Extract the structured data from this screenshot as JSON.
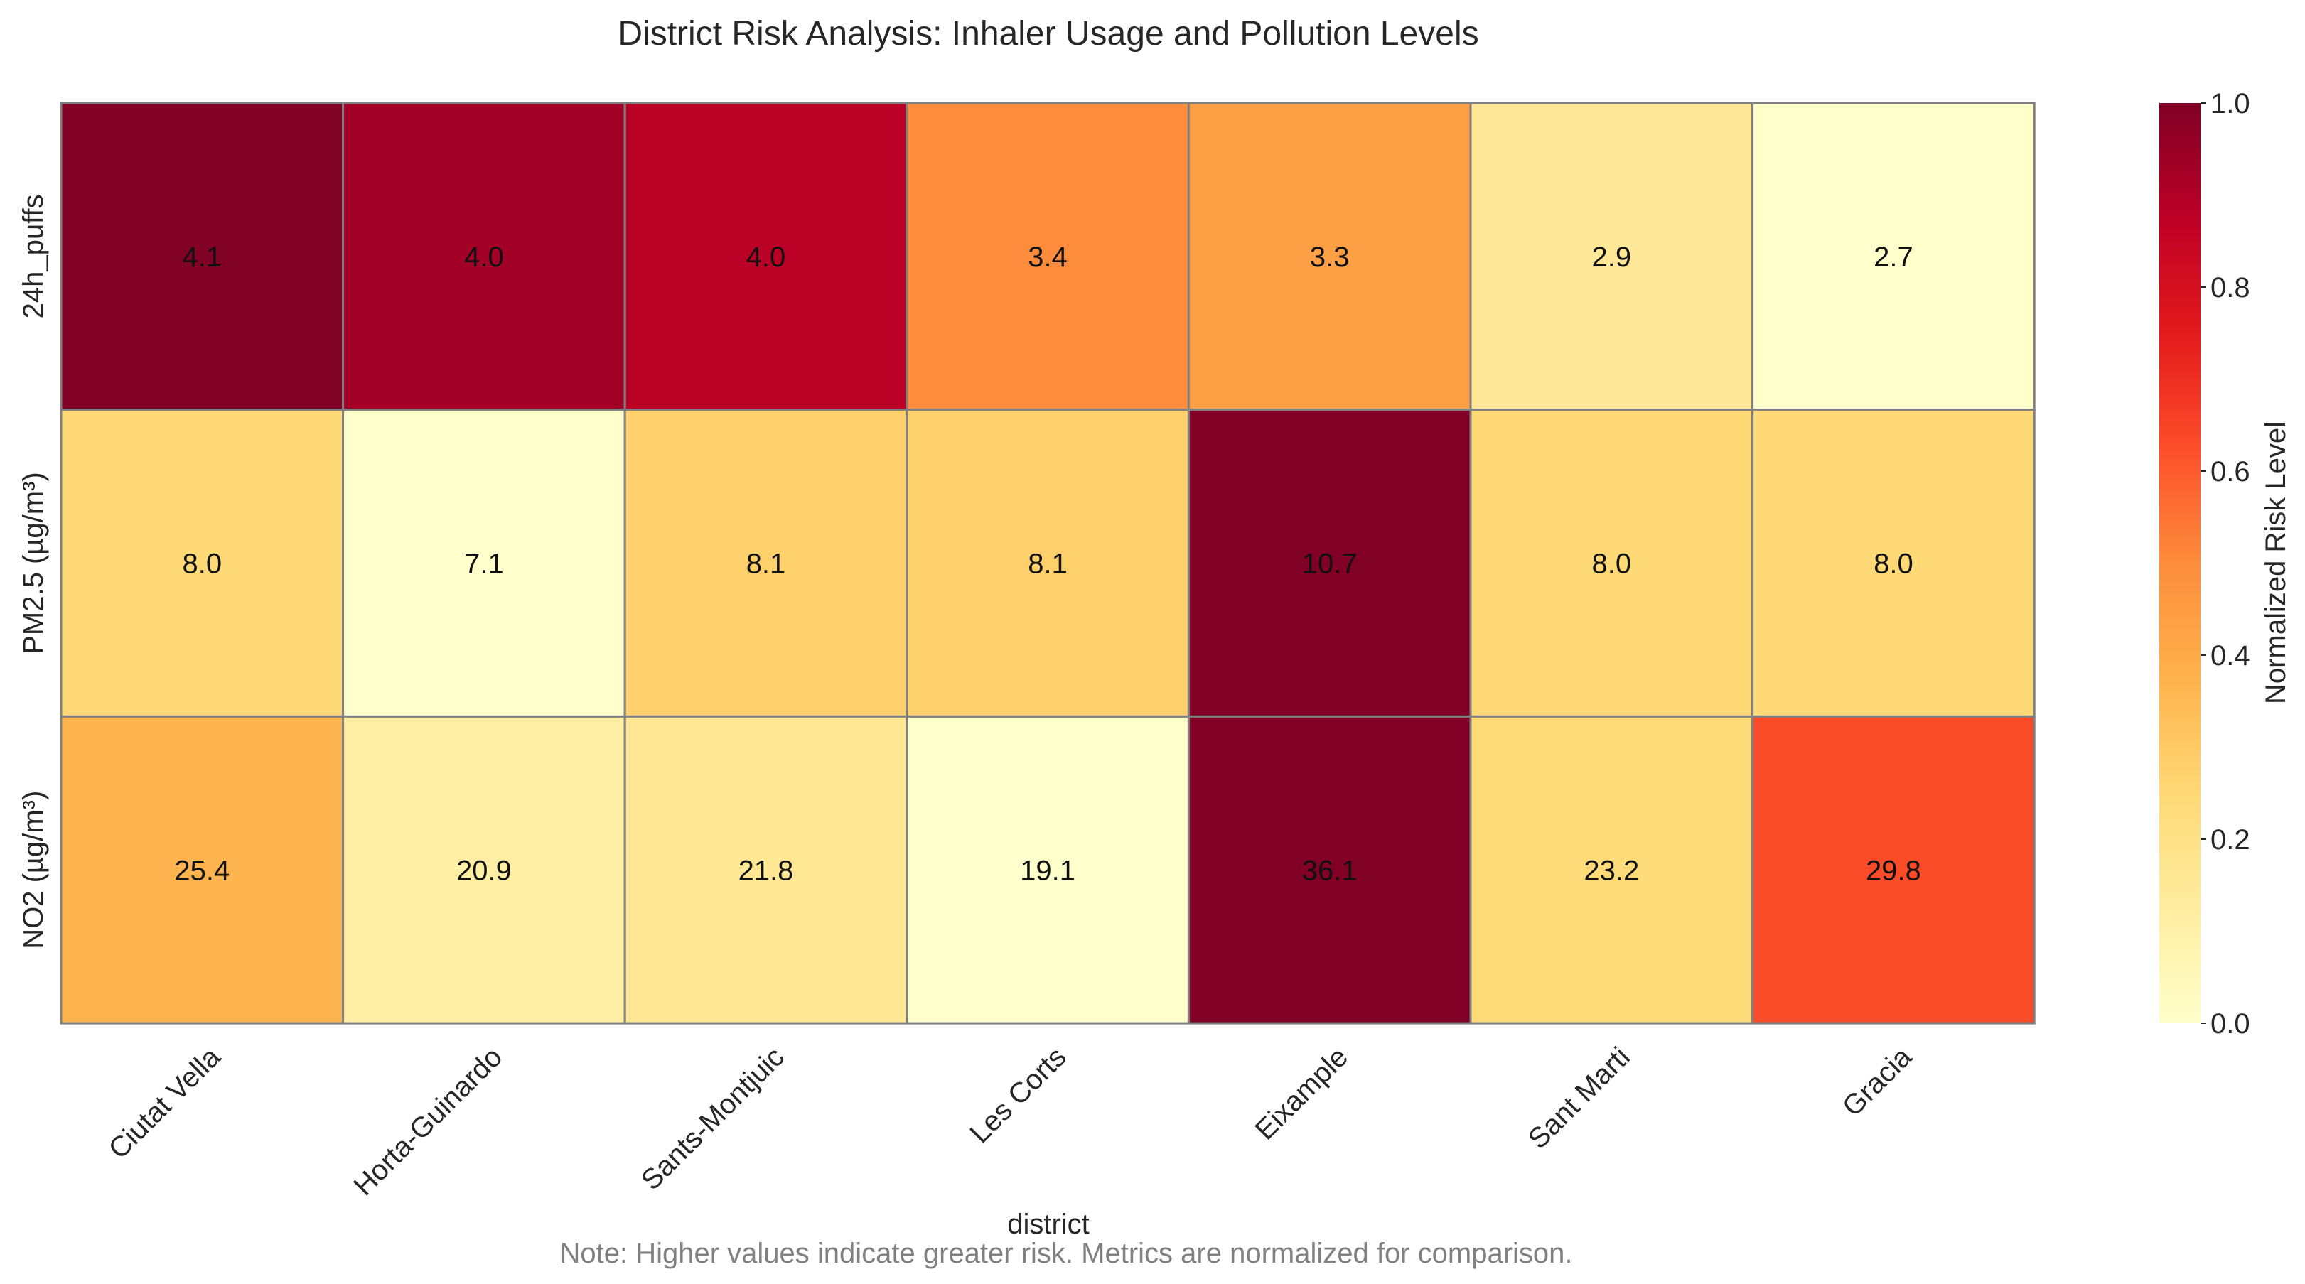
{
  "chart_data": {
    "type": "heatmap",
    "title": "District Risk Analysis: Inhaler Usage and Pollution Levels",
    "xlabel": "district",
    "ylabel": "",
    "columns": [
      "Ciutat Vella",
      "Horta-Guinardo",
      "Sants-Montjuic",
      "Les Corts",
      "Eixample",
      "Sant Marti",
      "Gracia"
    ],
    "rows": [
      "24h_puffs",
      "PM2.5 (µg/m³)",
      "NO2 (µg/m³)"
    ],
    "values": [
      [
        4.1,
        4.0,
        4.0,
        3.4,
        3.3,
        2.9,
        2.7
      ],
      [
        8.0,
        7.1,
        8.1,
        8.1,
        10.7,
        8.0,
        8.0
      ],
      [
        25.4,
        20.9,
        21.8,
        19.1,
        36.1,
        23.2,
        29.8
      ]
    ],
    "normalized": [
      [
        1.0,
        0.93,
        0.88,
        0.5,
        0.44,
        0.15,
        0.0
      ],
      [
        0.25,
        0.0,
        0.28,
        0.28,
        1.0,
        0.25,
        0.25
      ],
      [
        0.37,
        0.11,
        0.16,
        0.0,
        1.0,
        0.24,
        0.63
      ]
    ],
    "colorbar": {
      "label": "Normalized Risk Level",
      "range": [
        0.0,
        1.0
      ],
      "ticks": [
        "0.0",
        "0.2",
        "0.4",
        "0.6",
        "0.8",
        "1.0"
      ],
      "colormap": [
        "#ffffcc",
        "#ffeda0",
        "#fed976",
        "#feb24c",
        "#fd8d3c",
        "#fc4e2a",
        "#e31a1c",
        "#bd0026",
        "#800026"
      ]
    },
    "note": "Note: Higher values indicate greater risk. Metrics are normalized for comparison.",
    "grid_color": "#808080"
  }
}
